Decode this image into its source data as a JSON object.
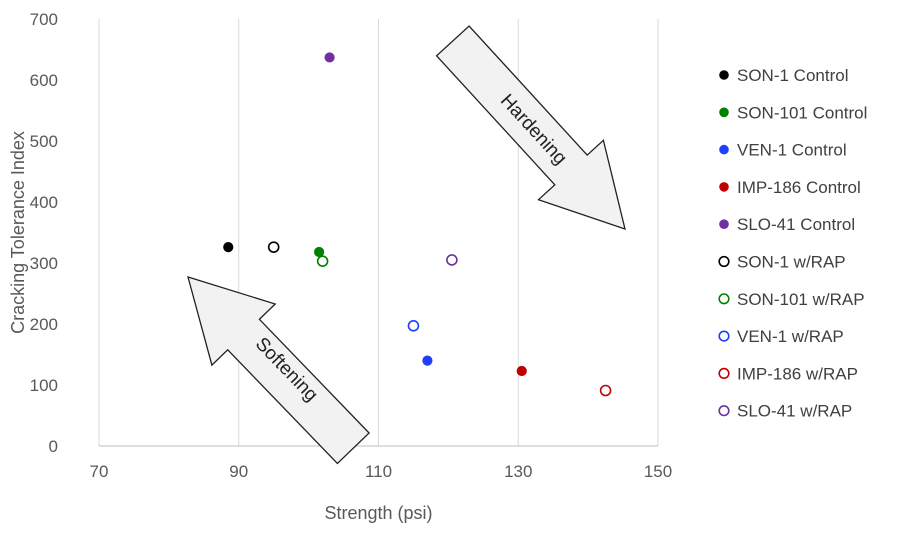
{
  "chart_data": {
    "type": "scatter",
    "title": "",
    "xlabel": "Strength  (psi)",
    "ylabel": "Cracking Tolerance Index",
    "xlim": [
      70,
      150
    ],
    "ylim": [
      0,
      700
    ],
    "xticks": [
      70,
      90,
      110,
      130,
      150
    ],
    "yticks": [
      0,
      100,
      200,
      300,
      400,
      500,
      600,
      700
    ],
    "grid": "vertical",
    "legend_position": "right",
    "series": [
      {
        "name": "SON-1 Control",
        "color": "#000000",
        "marker": "filled",
        "x": 88.5,
        "y": 326
      },
      {
        "name": "SON-101 Control",
        "color": "#008000",
        "marker": "filled",
        "x": 101.5,
        "y": 318
      },
      {
        "name": "VEN-1 Control",
        "color": "#1f3fff",
        "marker": "filled",
        "x": 117,
        "y": 140
      },
      {
        "name": "IMP-186 Control",
        "color": "#c00000",
        "marker": "filled",
        "x": 130.5,
        "y": 123
      },
      {
        "name": "SLO-41 Control",
        "color": "#7030a0",
        "marker": "filled",
        "x": 103,
        "y": 637
      },
      {
        "name": "SON-1 w/RAP",
        "color": "#000000",
        "marker": "hollow",
        "x": 95,
        "y": 326
      },
      {
        "name": "SON-101 w/RAP",
        "color": "#008000",
        "marker": "hollow",
        "x": 102,
        "y": 303
      },
      {
        "name": "VEN-1 w/RAP",
        "color": "#1f3fff",
        "marker": "hollow",
        "x": 115,
        "y": 197
      },
      {
        "name": "IMP-186 w/RAP",
        "color": "#c00000",
        "marker": "hollow",
        "x": 142.5,
        "y": 91
      },
      {
        "name": "SLO-41 w/RAP",
        "color": "#7030a0",
        "marker": "hollow",
        "x": 120.5,
        "y": 305
      }
    ],
    "annotations": [
      {
        "text": "Hardening",
        "direction": "down-right"
      },
      {
        "text": "Softening",
        "direction": "up-left"
      }
    ]
  }
}
